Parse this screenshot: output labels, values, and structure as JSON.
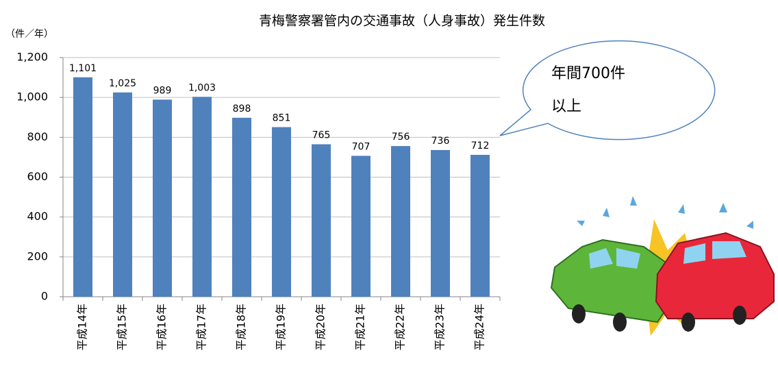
{
  "chart_data": {
    "type": "bar",
    "title": "青梅警察署管内の交通事故（人身事故）発生件数",
    "y_label": "（件／年）",
    "categories": [
      "平成14年",
      "平成15年",
      "平成16年",
      "平成17年",
      "平成18年",
      "平成19年",
      "平成20年",
      "平成21年",
      "平成22年",
      "平成23年",
      "平成24年"
    ],
    "values": [
      1101,
      1025,
      989,
      1003,
      898,
      851,
      765,
      707,
      756,
      736,
      712
    ],
    "value_labels": [
      "1,101",
      "1,025",
      "989",
      "1,003",
      "898",
      "851",
      "765",
      "707",
      "756",
      "736",
      "712"
    ],
    "color": "#4f81bd",
    "ylim": [
      0,
      1200
    ],
    "yticks": [
      0,
      200,
      400,
      600,
      800,
      {
        "value": 1000,
        "label": "1,000"
      },
      {
        "value": 1200,
        "label": "1,200"
      }
    ],
    "grid": true,
    "annotation": [
      "年間700件",
      "以上"
    ],
    "annotation_color": "#ff0000"
  }
}
